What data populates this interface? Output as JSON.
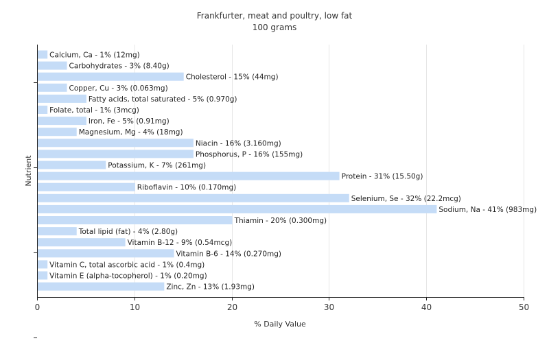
{
  "chart_data": {
    "type": "bar",
    "orientation": "horizontal",
    "title": "Frankfurter, meat and poultry, low fat",
    "subtitle": "100 grams",
    "xlabel": "% Daily Value",
    "ylabel": "Nutrient",
    "xlim": [
      0,
      50
    ],
    "xticks": [
      0,
      10,
      20,
      30,
      40,
      50
    ],
    "grid": true,
    "bar_color": "#c5dcf7",
    "categories": [
      "Calcium, Ca",
      "Carbohydrates",
      "Cholesterol",
      "Copper, Cu",
      "Fatty acids, total saturated",
      "Folate, total",
      "Iron, Fe",
      "Magnesium, Mg",
      "Niacin",
      "Phosphorus, P",
      "Potassium, K",
      "Protein",
      "Riboflavin",
      "Selenium, Se",
      "Sodium, Na",
      "Thiamin",
      "Total lipid (fat)",
      "Vitamin B-12",
      "Vitamin B-6",
      "Vitamin C, total ascorbic acid",
      "Vitamin E (alpha-tocopherol)",
      "Zinc, Zn"
    ],
    "values": [
      1,
      3,
      15,
      3,
      5,
      1,
      5,
      4,
      16,
      16,
      7,
      31,
      10,
      32,
      41,
      20,
      4,
      9,
      14,
      1,
      1,
      13
    ],
    "labels": [
      "Calcium, Ca - 1% (12mg)",
      "Carbohydrates - 3% (8.40g)",
      "Cholesterol - 15% (44mg)",
      "Copper, Cu - 3% (0.063mg)",
      "Fatty acids, total saturated - 5% (0.970g)",
      "Folate, total - 1% (3mcg)",
      "Iron, Fe - 5% (0.91mg)",
      "Magnesium, Mg - 4% (18mg)",
      "Niacin - 16% (3.160mg)",
      "Phosphorus, P - 16% (155mg)",
      "Potassium, K - 7% (261mg)",
      "Protein - 31% (15.50g)",
      "Riboflavin - 10% (0.170mg)",
      "Selenium, Se - 32% (22.2mcg)",
      "Sodium, Na - 41% (983mg)",
      "Thiamin - 20% (0.300mg)",
      "Total lipid (fat) - 4% (2.80g)",
      "Vitamin B-12 - 9% (0.54mcg)",
      "Vitamin B-6 - 14% (0.270mg)",
      "Vitamin C, total ascorbic acid - 1% (0.4mg)",
      "Vitamin E (alpha-tocopherol) - 1% (0.20mg)",
      "Zinc, Zn - 13% (1.93mg)"
    ]
  }
}
